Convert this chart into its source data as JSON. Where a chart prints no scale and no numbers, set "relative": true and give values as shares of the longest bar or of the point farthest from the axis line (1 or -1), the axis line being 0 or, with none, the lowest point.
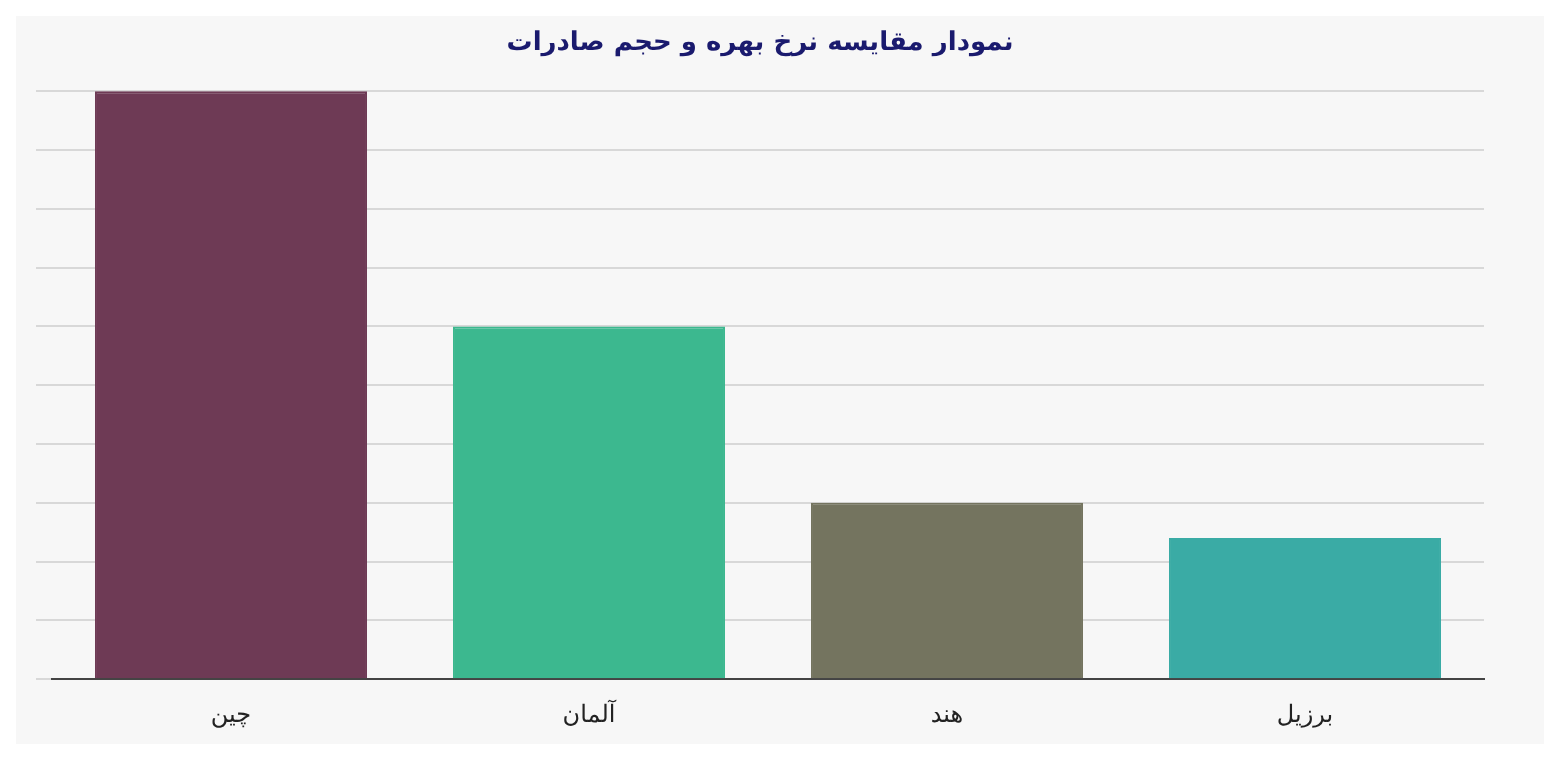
{
  "chart_data": {
    "type": "bar",
    "title": "نمودار مقایسه نرخ بهره و حجم صادرات",
    "categories": [
      "چین",
      "آلمان",
      "هند",
      "برزیل"
    ],
    "values": [
      1,
      0.6,
      0.3,
      0.24
    ],
    "colors": [
      "#6e3a55",
      "#3cb88f",
      "#74745f",
      "#3aaba5"
    ],
    "relative": true,
    "grid": "y",
    "legend": false
  }
}
